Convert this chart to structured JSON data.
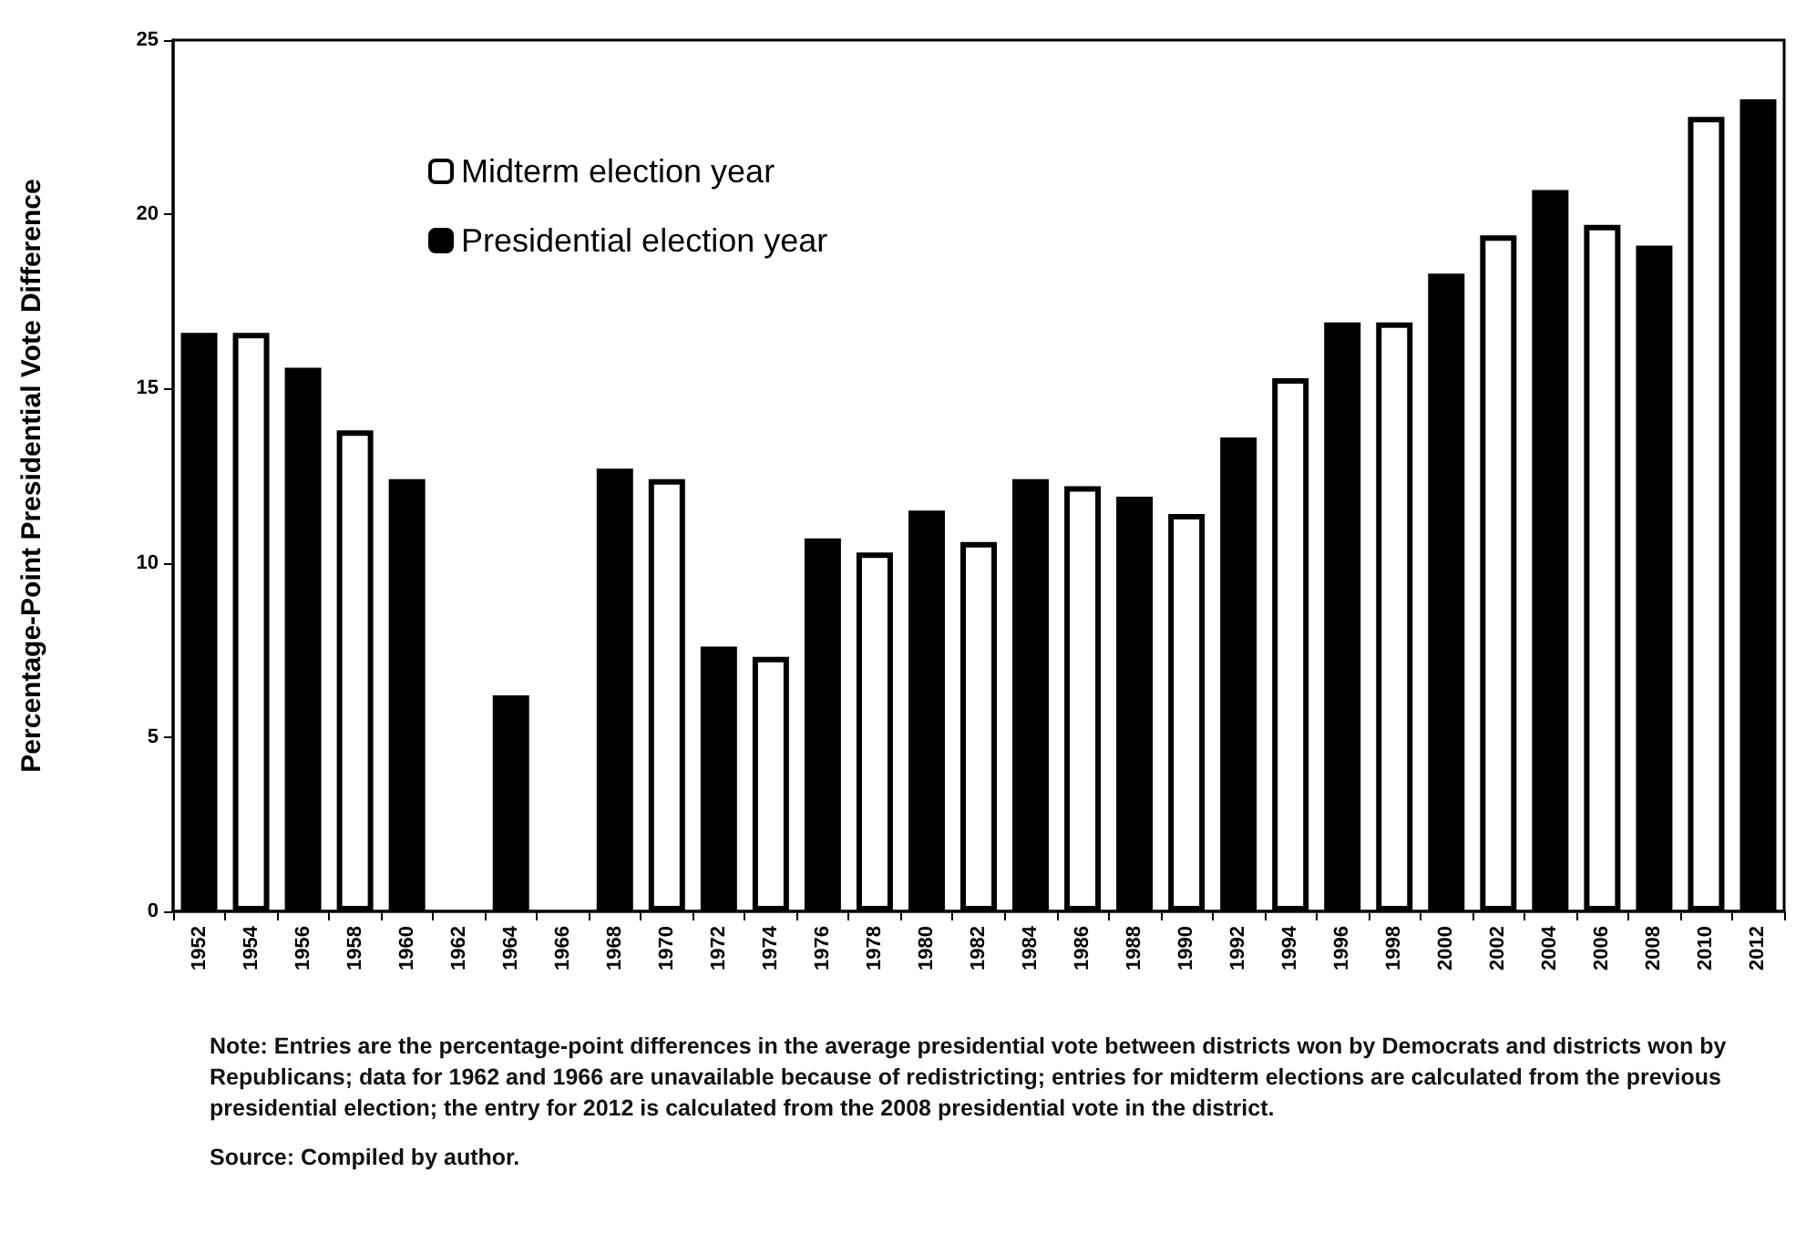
{
  "chart_data": {
    "type": "bar",
    "ylabel": "Percentage-Point Presidential Vote Difference",
    "categories": [
      "1952",
      "1954",
      "1956",
      "1958",
      "1960",
      "1962",
      "1964",
      "1966",
      "1968",
      "1970",
      "1972",
      "1974",
      "1976",
      "1978",
      "1980",
      "1982",
      "1984",
      "1986",
      "1988",
      "1990",
      "1992",
      "1994",
      "1996",
      "1998",
      "2000",
      "2002",
      "2004",
      "2006",
      "2008",
      "2010",
      "2012"
    ],
    "series": [
      {
        "name": "Midterm election year",
        "color": "#ffffff",
        "values": [
          null,
          16.6,
          null,
          13.8,
          null,
          null,
          null,
          null,
          null,
          12.4,
          null,
          7.3,
          null,
          10.3,
          null,
          10.6,
          null,
          12.2,
          null,
          11.4,
          null,
          15.3,
          null,
          16.9,
          null,
          19.4,
          null,
          19.7,
          null,
          22.8,
          null
        ]
      },
      {
        "name": "Presidential election year",
        "color": "#000000",
        "values": [
          16.6,
          null,
          15.6,
          null,
          12.4,
          null,
          6.2,
          null,
          12.7,
          null,
          7.6,
          null,
          10.7,
          null,
          11.5,
          null,
          12.4,
          null,
          11.9,
          null,
          13.6,
          null,
          16.9,
          null,
          18.3,
          null,
          20.7,
          null,
          19.1,
          null,
          23.3
        ]
      }
    ],
    "ylim": [
      0,
      25
    ],
    "yticks": [
      0,
      5,
      10,
      15,
      20,
      25
    ],
    "grid": false,
    "legend": "top left",
    "annotations": [
      "Note: Entries are the percentage-point differences in the average presidential vote between districts won by Democrats and  districts won by Republicans; data for 1962 and 1966 are unavailable because of redistricting; entries for midterm elections are calculated from the previous presidential election; the entry for 2012 is calculated from the 2008 presidential vote in the district.",
      "Source: Compiled by author."
    ]
  }
}
